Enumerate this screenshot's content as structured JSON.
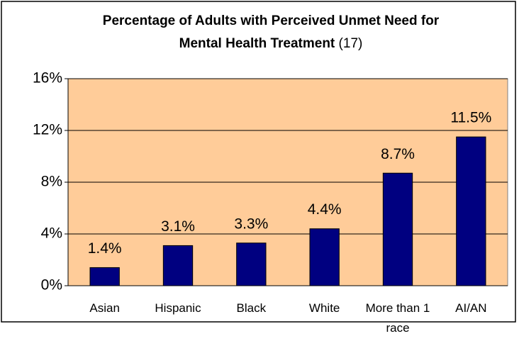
{
  "chart_data": {
    "type": "bar",
    "title": [
      "Percentage of Adults with Perceived Unmet Need for",
      "Mental Health Treatment"
    ],
    "title_note": "(17)",
    "categories": [
      "Asian",
      "Hispanic",
      "Black",
      "White",
      "More than 1 race",
      "AI/AN"
    ],
    "values": [
      1.4,
      3.1,
      3.3,
      4.4,
      8.7,
      11.5
    ],
    "value_labels": [
      "1.4%",
      "3.1%",
      "3.3%",
      "4.4%",
      "8.7%",
      "11.5%"
    ],
    "color": "#000080",
    "plot_background": "#ffcc99",
    "ylim": [
      0,
      16
    ],
    "yticks": [
      {
        "value": 0,
        "label": "0%"
      },
      {
        "value": 4,
        "label": "4%"
      },
      {
        "value": 8,
        "label": "8%"
      },
      {
        "value": 12,
        "label": "12%"
      },
      {
        "value": 16,
        "label": "16%"
      }
    ],
    "grid": true
  }
}
